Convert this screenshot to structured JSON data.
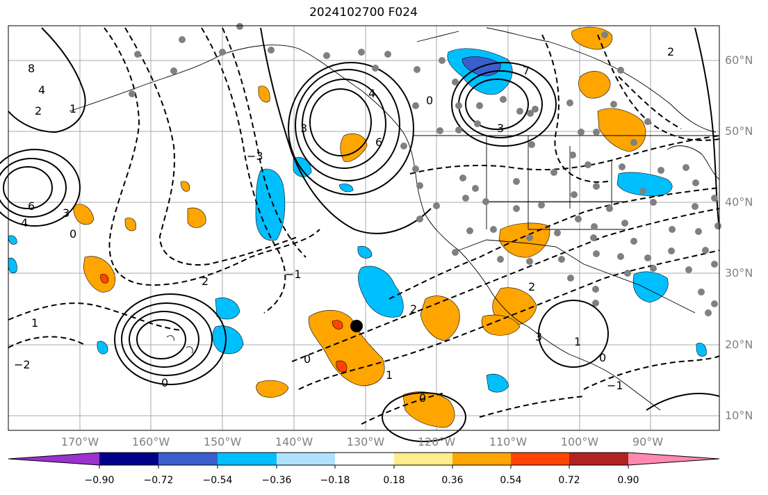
{
  "title": "2024102700 F024",
  "lat_labels": [
    "60°N",
    "50°N",
    "40°N",
    "30°N",
    "20°N",
    "10°N"
  ],
  "lon_labels": [
    "170°W",
    "160°W",
    "150°W",
    "140°W",
    "130°W",
    "120°W",
    "110°W",
    "100°W",
    "90°W"
  ],
  "colorbar": {
    "colors": [
      "#9a32cd",
      "#00008b",
      "#3a5fcd",
      "#00bfff",
      "#b0e2ff",
      "#ffffff",
      "#ffec8b",
      "#ffa500",
      "#ff4500",
      "#b22222",
      "#ff89b0"
    ],
    "tick_labels": [
      "−0.90",
      "−0.72",
      "−0.54",
      "−0.36",
      "−0.18",
      "0.18",
      "0.36",
      "0.54",
      "0.72",
      "0.90"
    ]
  },
  "contour_labels": [
    "0",
    "1",
    "2",
    "3",
    "4",
    "6",
    "7",
    "8",
    "−1",
    "−2",
    "−3"
  ],
  "colors": {
    "ocean": "#ffffff",
    "gridline": "#9e9e9e",
    "coastline": "#000000",
    "station_dot": "#808080",
    "marker": "#000000"
  }
}
